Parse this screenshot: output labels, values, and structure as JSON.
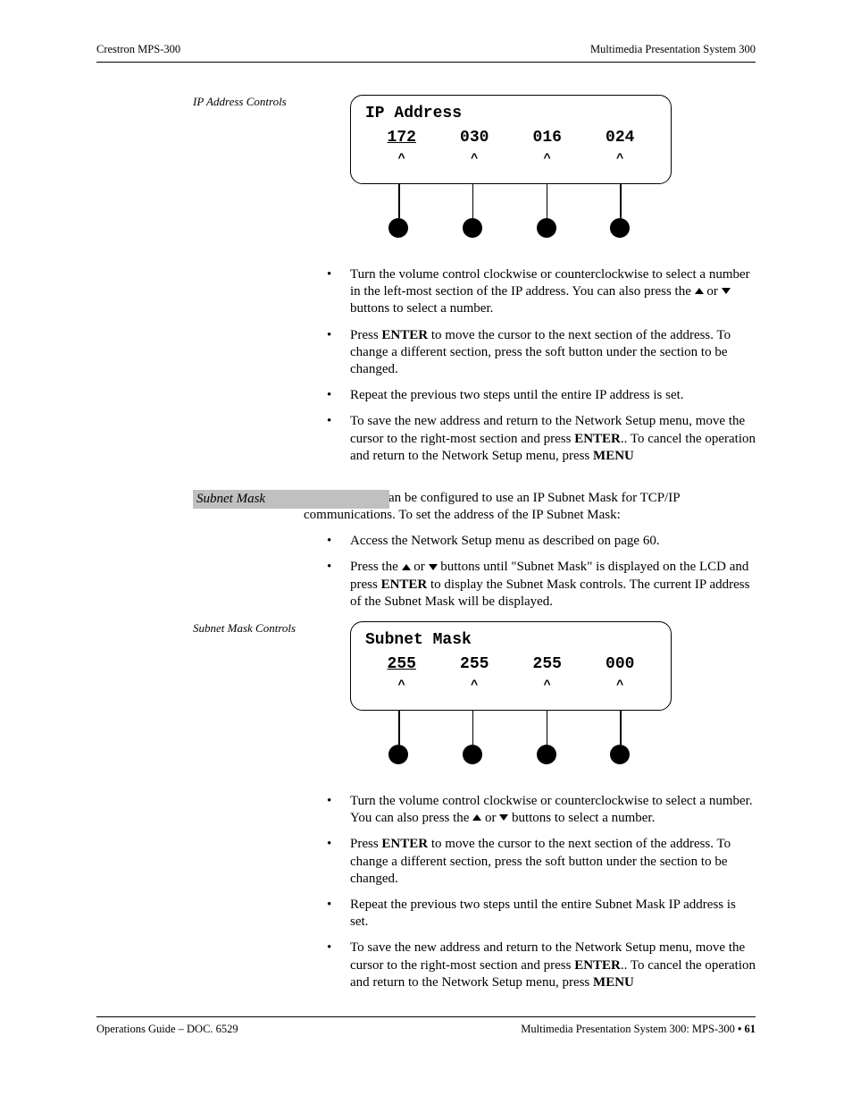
{
  "header": {
    "left": "Crestron MPS-300",
    "right": "Multimedia Presentation System 300"
  },
  "section1": {
    "margin_label": "IP Address Controls",
    "lcd": {
      "line1": "IP Address",
      "segs": [
        "172",
        "030",
        "016",
        "024"
      ],
      "active_index": 0
    },
    "bullets": [
      {
        "pre": "Turn the volume control clockwise or counterclockwise to select a number in the left-most section of the IP address. You can also press the ",
        "tri1": "up",
        "mid": " or ",
        "tri2": "down",
        "post": " buttons to select a number."
      },
      {
        "pre": "Press ",
        "b1": "ENTER",
        "post": " to move the cursor to the next section of the address. To change a different section, press the soft button under the section to be changed."
      },
      {
        "pre": "Repeat the previous two steps until the entire IP address is set."
      },
      {
        "pre": "To save the new address and return to the Network Setup menu, move the cursor to the right-most section and press ",
        "b1": "ENTER",
        "mid": ". To cancel the operation and return to the Network Setup menu, press ",
        "b2": "MENU",
        "post": "."
      }
    ]
  },
  "section2": {
    "sidebar_title": "Subnet Mask",
    "intro": "The MPS-300 can be configured to use an IP Subnet Mask for TCP/IP communications. To set the address of the IP Subnet Mask:",
    "pre_bullets": [
      {
        "pre": "Access the Network Setup menu as described on page 60."
      },
      {
        "pre": "Press the ",
        "tri1": "up",
        "mid": " or ",
        "tri2": "down",
        "post1": " buttons until \"Subnet Mask\" is displayed on the LCD and press ",
        "b1": "ENTER",
        "post2": " to display the Subnet Mask controls. The current IP address of the Subnet Mask will be displayed."
      }
    ],
    "margin_label": "Subnet Mask Controls",
    "lcd": {
      "line1": "Subnet Mask",
      "segs": [
        "255",
        "255",
        "255",
        "000"
      ],
      "active_index": 0
    },
    "bullets": [
      {
        "pre": "Turn the volume control clockwise or counterclockwise to select a number. You can also press the ",
        "tri1": "up",
        "mid": " or ",
        "tri2": "down",
        "post": " buttons to select a number."
      },
      {
        "pre": "Press ",
        "b1": "ENTER",
        "post": " to move the cursor to the next section of the address. To change a different section, press the soft button under the section to be changed."
      },
      {
        "pre": "Repeat the previous two steps until the entire Subnet Mask IP address is set."
      },
      {
        "pre": "To save the new address and return to the Network Setup menu, move the cursor to the right-most section and press ",
        "b1": "ENTER",
        "mid": ". To cancel the operation and return to the Network Setup menu, press ",
        "b2": "MENU",
        "post": "."
      }
    ]
  },
  "footer": {
    "left": "Operations Guide – DOC. 6529",
    "right_pre": "Multimedia Presentation System 300: MPS-300 ",
    "right_bullet": "•",
    "right_post": " 61"
  },
  "button_positions_pct": [
    15,
    38,
    61,
    84
  ]
}
